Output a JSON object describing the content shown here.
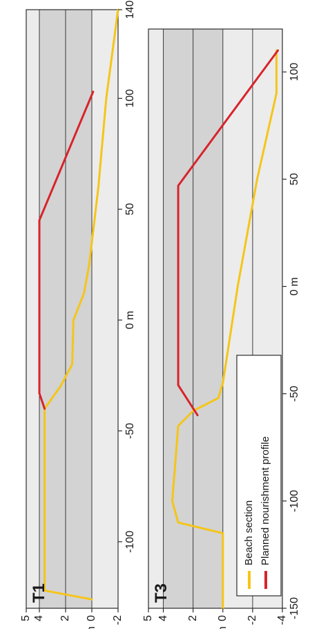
{
  "chart_data": [
    {
      "type": "line",
      "panel_label": "T1",
      "xlim": [
        -130,
        140
      ],
      "ylim": [
        -2,
        5
      ],
      "x_ticks": [
        -100,
        -50,
        0,
        50,
        100,
        140
      ],
      "x_tick_labels": [
        "-100",
        "-50",
        "0 m",
        "50",
        "100",
        "140"
      ],
      "y_ticks": [
        -2,
        0,
        2,
        4,
        5
      ],
      "y_tick_labels": [
        "-2",
        "0",
        "2",
        "4",
        "5"
      ],
      "ylabel": "m",
      "bands": [
        {
          "from": 0,
          "to": 4,
          "color": "#d3d3d3"
        },
        {
          "from": -2,
          "to": 0,
          "color": "#ececec"
        },
        {
          "from": 4,
          "to": 5,
          "color": "#ececec"
        }
      ],
      "grid": true,
      "series": [
        {
          "name": "Beach section",
          "color": "#f5c518",
          "points": [
            [
              -126,
              0
            ],
            [
              -122,
              3.6
            ],
            [
              -40,
              3.6
            ],
            [
              -30,
              2.4
            ],
            [
              -20,
              1.5
            ],
            [
              0,
              1.4
            ],
            [
              12,
              0.6
            ],
            [
              25,
              0.2
            ],
            [
              60,
              -0.5
            ],
            [
              100,
              -1.1
            ],
            [
              140,
              -2
            ]
          ]
        },
        {
          "name": "Planned nourishment profile",
          "color": "#d8232a",
          "points": [
            [
              -40,
              3.6
            ],
            [
              -33,
              4
            ],
            [
              45,
              4
            ],
            [
              103,
              -0.1
            ]
          ]
        }
      ]
    },
    {
      "type": "line",
      "panel_label": "T3",
      "xlim": [
        -150,
        120
      ],
      "ylim": [
        -4,
        5
      ],
      "x_ticks": [
        -150,
        -100,
        -50,
        0,
        50,
        100
      ],
      "x_tick_labels": [
        "-150",
        "-100",
        "-50",
        "0 m",
        "50",
        "100"
      ],
      "y_ticks": [
        -4,
        -2,
        0,
        2,
        4,
        5
      ],
      "y_tick_labels": [
        "-4",
        "-2",
        "0",
        "2",
        "4",
        "5"
      ],
      "ylabel": "m",
      "bands": [
        {
          "from": 0,
          "to": 4,
          "color": "#d3d3d3"
        },
        {
          "from": -4,
          "to": 0,
          "color": "#ececec"
        },
        {
          "from": 4,
          "to": 5,
          "color": "#ececec"
        }
      ],
      "grid": true,
      "series": [
        {
          "name": "Beach section",
          "color": "#f5c518",
          "points": [
            [
              -150,
              0
            ],
            [
              -115,
              0
            ],
            [
              -110,
              3
            ],
            [
              -100,
              3.4
            ],
            [
              -65,
              3
            ],
            [
              -58,
              2
            ],
            [
              -52,
              0.3
            ],
            [
              -45,
              0
            ],
            [
              0,
              -1
            ],
            [
              50,
              -2.3
            ],
            [
              90,
              -3.6
            ],
            [
              110,
              -3.6
            ]
          ]
        },
        {
          "name": "Planned nourishment profile",
          "color": "#d8232a",
          "points": [
            [
              -60,
              1.7
            ],
            [
              -46,
              3
            ],
            [
              47,
              3
            ],
            [
              110,
              -3.7
            ]
          ]
        }
      ],
      "legend": {
        "placement": "bottom-left",
        "entries": [
          "Beach section",
          "Planned nourishment profile"
        ]
      }
    }
  ]
}
